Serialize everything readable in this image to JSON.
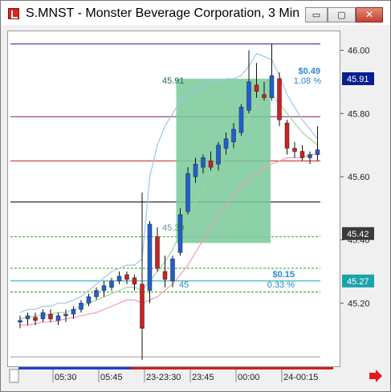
{
  "window": {
    "title": "S.MNST - Monster Beverage Corporation, 3 Min",
    "minimize_glyph": "▭",
    "maximize_glyph": "▢",
    "close_glyph": "✕"
  },
  "icons": {
    "app": "chart-app-icon",
    "scroll_right": "red-right-arrow-icon"
  },
  "price_axis": {
    "ticks": [
      "46.00",
      "45.80",
      "45.60",
      "45.40",
      "45.20"
    ],
    "markers": [
      {
        "value": 45.91,
        "label": "45.91",
        "bg": "#0a1f8f",
        "fg": "#ffffff"
      },
      {
        "value": 45.42,
        "label": "45.42",
        "bg": "#3a3a3a",
        "fg": "#ffffff"
      },
      {
        "value": 45.27,
        "label": "45.27",
        "bg": "#1aa3a8",
        "fg": "#ffffff"
      }
    ]
  },
  "time_axis": {
    "ticks": [
      "05:30",
      "05:45",
      "23-23:30",
      "23:45",
      "00:00",
      "24-00:15"
    ]
  },
  "annotations": {
    "box_top": "45.91",
    "box_bottom": "45.39",
    "gain_amount": "$0.49",
    "gain_pct": "1.08 %",
    "small_amount": "$0.15",
    "small_pct": "0.33 %",
    "small_label": "45"
  },
  "levels": [
    {
      "price": 46.02,
      "color": "#1c1c9e"
    },
    {
      "price": 45.79,
      "color": "#7a1a6e"
    },
    {
      "price": 45.65,
      "color": "#c21a1a"
    },
    {
      "price": 45.52,
      "color": "#000000"
    },
    {
      "price": 45.41,
      "color": "#1ea81e",
      "dash": true
    },
    {
      "price": 45.31,
      "color": "#1ea81e",
      "dash": true
    },
    {
      "price": 45.27,
      "color": "#18a6b0"
    },
    {
      "price": 45.235,
      "color": "#1ea81e",
      "dash": true
    },
    {
      "price": 45.03,
      "color": "#9a9a9a"
    }
  ],
  "colors": {
    "up": "#1f5fd1",
    "down": "#d01f1f",
    "neutral": "#8b6a2e",
    "box_fill": "#79c99a",
    "upper_band": "#9ec6ea",
    "mid_band": "#9fd4a0",
    "lower_band": "#f29ac0"
  },
  "chart_data": {
    "type": "candlestick",
    "candles": [
      {
        "o": 45.14,
        "h": 45.16,
        "l": 45.12,
        "c": 45.145
      },
      {
        "o": 45.15,
        "h": 45.17,
        "l": 45.13,
        "c": 45.16
      },
      {
        "o": 45.155,
        "h": 45.17,
        "l": 45.13,
        "c": 45.145
      },
      {
        "o": 45.15,
        "h": 45.18,
        "l": 45.14,
        "c": 45.17
      },
      {
        "o": 45.165,
        "h": 45.18,
        "l": 45.14,
        "c": 45.15
      },
      {
        "o": 45.145,
        "h": 45.17,
        "l": 45.13,
        "c": 45.16
      },
      {
        "o": 45.16,
        "h": 45.18,
        "l": 45.14,
        "c": 45.165
      },
      {
        "o": 45.165,
        "h": 45.19,
        "l": 45.15,
        "c": 45.18
      },
      {
        "o": 45.18,
        "h": 45.21,
        "l": 45.17,
        "c": 45.2
      },
      {
        "o": 45.2,
        "h": 45.23,
        "l": 45.19,
        "c": 45.22
      },
      {
        "o": 45.22,
        "h": 45.25,
        "l": 45.21,
        "c": 45.24
      },
      {
        "o": 45.24,
        "h": 45.27,
        "l": 45.22,
        "c": 45.255
      },
      {
        "o": 45.25,
        "h": 45.28,
        "l": 45.24,
        "c": 45.27
      },
      {
        "o": 45.27,
        "h": 45.3,
        "l": 45.26,
        "c": 45.285
      },
      {
        "o": 45.29,
        "h": 45.3,
        "l": 45.26,
        "c": 45.275
      },
      {
        "o": 45.28,
        "h": 45.29,
        "l": 45.24,
        "c": 45.26
      },
      {
        "o": 45.26,
        "h": 45.55,
        "l": 45.02,
        "c": 45.12
      },
      {
        "o": 45.24,
        "h": 45.46,
        "l": 45.2,
        "c": 45.45
      },
      {
        "o": 45.41,
        "h": 45.44,
        "l": 45.3,
        "c": 45.31
      },
      {
        "o": 45.3,
        "h": 45.35,
        "l": 45.25,
        "c": 45.275
      },
      {
        "o": 45.27,
        "h": 45.35,
        "l": 45.25,
        "c": 45.34
      },
      {
        "o": 45.36,
        "h": 45.5,
        "l": 45.35,
        "c": 45.48
      },
      {
        "o": 45.49,
        "h": 45.63,
        "l": 45.48,
        "c": 45.61
      },
      {
        "o": 45.6,
        "h": 45.66,
        "l": 45.58,
        "c": 45.64
      },
      {
        "o": 45.63,
        "h": 45.67,
        "l": 45.61,
        "c": 45.66
      },
      {
        "o": 45.65,
        "h": 45.68,
        "l": 45.62,
        "c": 45.63
      },
      {
        "o": 45.64,
        "h": 45.71,
        "l": 45.62,
        "c": 45.7
      },
      {
        "o": 45.69,
        "h": 45.74,
        "l": 45.67,
        "c": 45.72
      },
      {
        "o": 45.71,
        "h": 45.77,
        "l": 45.69,
        "c": 45.75
      },
      {
        "o": 45.74,
        "h": 45.83,
        "l": 45.73,
        "c": 45.82
      },
      {
        "o": 45.81,
        "h": 46.0,
        "l": 45.8,
        "c": 45.9
      },
      {
        "o": 45.89,
        "h": 45.96,
        "l": 45.85,
        "c": 45.87
      },
      {
        "o": 45.86,
        "h": 45.9,
        "l": 45.84,
        "c": 45.85
      },
      {
        "o": 45.85,
        "h": 46.02,
        "l": 45.84,
        "c": 45.92
      },
      {
        "o": 45.91,
        "h": 45.93,
        "l": 45.76,
        "c": 45.78
      },
      {
        "o": 45.77,
        "h": 45.78,
        "l": 45.67,
        "c": 45.69
      },
      {
        "o": 45.69,
        "h": 45.71,
        "l": 45.66,
        "c": 45.68
      },
      {
        "o": 45.68,
        "h": 45.7,
        "l": 45.65,
        "c": 45.66
      },
      {
        "o": 45.66,
        "h": 45.68,
        "l": 45.64,
        "c": 45.67
      },
      {
        "o": 45.67,
        "h": 45.76,
        "l": 45.65,
        "c": 45.685
      }
    ],
    "upper_band": [
      45.17,
      45.18,
      45.18,
      45.19,
      45.19,
      45.2,
      45.2,
      45.21,
      45.22,
      45.24,
      45.26,
      45.28,
      45.3,
      45.31,
      45.32,
      45.32,
      45.34,
      45.6,
      45.7,
      45.76,
      45.8,
      45.84,
      45.86,
      45.88,
      45.89,
      45.9,
      45.9,
      45.91,
      45.91,
      45.92,
      45.95,
      45.99,
      45.98,
      45.97,
      45.92,
      45.86,
      45.82,
      45.78,
      45.75,
      45.72
    ],
    "middle_band": [
      45.15,
      45.155,
      45.16,
      45.16,
      45.165,
      45.17,
      45.17,
      45.18,
      45.19,
      45.2,
      45.21,
      45.22,
      45.23,
      45.24,
      45.25,
      45.25,
      45.24,
      45.27,
      45.3,
      45.33,
      45.37,
      45.42,
      45.47,
      45.52,
      45.56,
      45.6,
      45.63,
      45.67,
      45.7,
      45.74,
      45.79,
      45.83,
      45.84,
      45.86,
      45.83,
      45.8,
      45.77,
      45.74,
      45.72,
      45.7
    ],
    "lower_band": [
      45.13,
      45.13,
      45.135,
      45.14,
      45.14,
      45.145,
      45.15,
      45.155,
      45.16,
      45.165,
      45.17,
      45.18,
      45.19,
      45.2,
      45.21,
      45.21,
      45.2,
      45.21,
      45.22,
      45.24,
      45.26,
      45.29,
      45.32,
      45.36,
      45.4,
      45.44,
      45.48,
      45.51,
      45.54,
      45.57,
      45.59,
      45.61,
      45.63,
      45.64,
      45.65,
      45.66,
      45.66,
      45.66,
      45.67,
      45.67
    ],
    "ylim": [
      45.0,
      46.06
    ],
    "yticks": [
      46.0,
      45.8,
      45.6,
      45.4,
      45.2
    ],
    "box": {
      "start_index": 21,
      "end_index": 32,
      "top": 45.91,
      "bottom": 45.39
    },
    "grid": false
  }
}
